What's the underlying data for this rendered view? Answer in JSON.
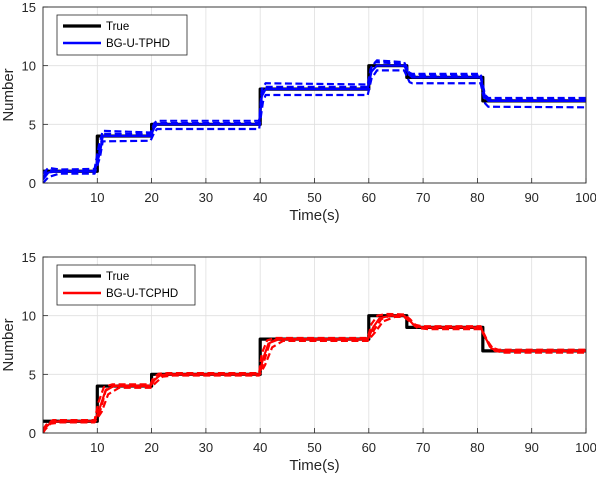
{
  "chart_data": [
    {
      "type": "line",
      "xlabel": "Time(s)",
      "ylabel": "Number",
      "xlim": [
        0,
        100
      ],
      "ylim": [
        0,
        15
      ],
      "xticks": [
        10,
        20,
        30,
        40,
        50,
        60,
        70,
        80,
        90,
        100
      ],
      "yticks": [
        0,
        5,
        10,
        15
      ],
      "grid": true,
      "legend": "top-left",
      "series": [
        {
          "name": "True",
          "color": "#000000",
          "style": "solid-step",
          "x": [
            0,
            10,
            10,
            20,
            20,
            40,
            40,
            60,
            60,
            67,
            67,
            81,
            81,
            100
          ],
          "y": [
            1,
            1,
            4,
            4,
            5,
            5,
            8,
            8,
            10,
            10,
            9,
            9,
            7,
            7
          ]
        },
        {
          "name": "BG-U-TPHD",
          "color": "#0000ff",
          "style": "solid",
          "x": [
            0,
            1,
            3,
            9.5,
            10.5,
            11,
            19.8,
            20.5,
            21,
            39.8,
            40.3,
            41,
            59.8,
            60.5,
            61.5,
            66.5,
            67.5,
            68,
            80.6,
            81.4,
            82,
            100
          ],
          "y": [
            0.3,
            0.9,
            1.0,
            1.0,
            2.6,
            4.0,
            4.0,
            4.7,
            5.0,
            5.0,
            7.4,
            8.0,
            8.0,
            9.5,
            10.0,
            10.0,
            9.2,
            9.0,
            9.0,
            7.3,
            7.0,
            7.0
          ]
        },
        {
          "name": "",
          "color": "#0000ff",
          "style": "dashed",
          "x": [
            0,
            1,
            3,
            9.5,
            10.3,
            11,
            19.8,
            20.5,
            21,
            39.8,
            40.3,
            41,
            59.8,
            60.5,
            61.5,
            66.5,
            67.5,
            68,
            80.6,
            81.4,
            82,
            100
          ],
          "y": [
            0.8,
            1.3,
            1.15,
            1.2,
            3.2,
            4.45,
            4.3,
            5.1,
            5.3,
            5.3,
            8.0,
            8.5,
            8.4,
            9.9,
            10.45,
            10.3,
            9.4,
            9.3,
            9.3,
            7.5,
            7.25,
            7.25
          ]
        },
        {
          "name": "",
          "color": "#0000ff",
          "style": "dashed",
          "x": [
            0,
            1,
            3,
            9.5,
            10.5,
            11,
            19.8,
            20.5,
            21,
            39.8,
            40.5,
            41,
            59.8,
            60.5,
            61.5,
            66.5,
            67.5,
            68,
            80.6,
            81.4,
            82,
            100
          ],
          "y": [
            0.0,
            0.5,
            0.8,
            0.8,
            2.2,
            3.55,
            3.6,
            4.3,
            4.6,
            4.6,
            6.9,
            7.5,
            7.5,
            8.9,
            9.6,
            9.6,
            8.6,
            8.5,
            8.5,
            6.8,
            6.5,
            6.45
          ]
        },
        {
          "name": "",
          "color": "#0000ff",
          "style": "dashed",
          "x": [
            0,
            1,
            3,
            9.5,
            10.5,
            11,
            19.8,
            20.5,
            21,
            39.8,
            40.3,
            41,
            59.8,
            60.3,
            61.2,
            66.5,
            67.5,
            68,
            80.6,
            81.3,
            82,
            100
          ],
          "y": [
            0.5,
            1.1,
            0.95,
            1.05,
            2.9,
            4.2,
            4.15,
            4.95,
            5.1,
            5.1,
            7.7,
            8.2,
            8.2,
            9.7,
            10.3,
            10.15,
            9.35,
            9.15,
            9.15,
            7.4,
            7.1,
            7.1
          ]
        }
      ]
    },
    {
      "type": "line",
      "xlabel": "Time(s)",
      "ylabel": "Number",
      "xlim": [
        0,
        100
      ],
      "ylim": [
        0,
        15
      ],
      "xticks": [
        10,
        20,
        30,
        40,
        50,
        60,
        70,
        80,
        90,
        100
      ],
      "yticks": [
        0,
        5,
        10,
        15
      ],
      "grid": true,
      "legend": "top-left",
      "series": [
        {
          "name": "True",
          "color": "#000000",
          "style": "solid-step",
          "x": [
            0,
            10,
            10,
            20,
            20,
            40,
            40,
            60,
            60,
            67,
            67,
            81,
            81,
            100
          ],
          "y": [
            1,
            1,
            4,
            4,
            5,
            5,
            8,
            8,
            10,
            10,
            9,
            9,
            7,
            7
          ]
        },
        {
          "name": "BG-U-TCPHD",
          "color": "#ff0000",
          "style": "solid",
          "x": [
            0,
            0.5,
            1.5,
            3,
            9.5,
            10.5,
            11.5,
            13,
            19.8,
            20.5,
            21.5,
            23,
            39.8,
            40.5,
            41.5,
            43,
            59.8,
            60.8,
            62,
            64,
            66.5,
            67.5,
            68.5,
            70,
            80.6,
            81.6,
            82.6,
            84,
            100
          ],
          "y": [
            0.1,
            0.5,
            0.9,
            1.0,
            1.0,
            2.2,
            3.6,
            4.0,
            4.0,
            4.5,
            4.9,
            5.0,
            5.0,
            6.3,
            7.6,
            8.0,
            8.0,
            9.0,
            9.8,
            10.0,
            10.0,
            9.6,
            9.1,
            9.0,
            9.0,
            8.0,
            7.2,
            7.0,
            7.0
          ]
        },
        {
          "name": "",
          "color": "#ff0000",
          "style": "dashed",
          "x": [
            0,
            0.6,
            1.8,
            3.5,
            9.5,
            10.2,
            11.2,
            12.8,
            19.8,
            20.3,
            21.3,
            22.8,
            39.8,
            40.3,
            41.3,
            42.8,
            59.8,
            60.5,
            61.6,
            63.2,
            66.5,
            67.3,
            68.3,
            69.8,
            80.6,
            81.3,
            82.3,
            83.8,
            100
          ],
          "y": [
            0.3,
            0.7,
            1.1,
            1.1,
            1.1,
            2.6,
            3.9,
            4.15,
            4.15,
            4.7,
            5.05,
            5.1,
            5.1,
            6.8,
            7.9,
            8.1,
            8.1,
            9.3,
            10.0,
            10.15,
            10.1,
            9.8,
            9.25,
            9.1,
            9.1,
            8.3,
            7.35,
            7.1,
            7.1
          ]
        },
        {
          "name": "",
          "color": "#ff0000",
          "style": "dashed",
          "x": [
            0,
            0.4,
            1.4,
            3.2,
            9.5,
            10.8,
            12,
            14,
            19.8,
            20.8,
            22,
            24,
            39.8,
            40.9,
            42.2,
            44.2,
            59.8,
            61.2,
            62.6,
            64.8,
            66.5,
            67.8,
            69,
            71,
            80.6,
            82,
            83.2,
            85,
            100
          ],
          "y": [
            0.0,
            0.3,
            0.8,
            0.9,
            0.9,
            1.8,
            3.3,
            3.85,
            3.85,
            4.3,
            4.8,
            4.9,
            4.9,
            5.8,
            7.3,
            7.85,
            7.85,
            8.6,
            9.5,
            9.9,
            9.9,
            9.4,
            8.95,
            8.85,
            8.85,
            7.7,
            7.0,
            6.85,
            6.85
          ]
        },
        {
          "name": "",
          "color": "#ff0000",
          "style": "dashed",
          "x": [
            0,
            0.5,
            1.6,
            3.3,
            9.5,
            10.6,
            11.6,
            13.3,
            19.8,
            20.6,
            21.7,
            23.5,
            39.8,
            40.7,
            41.8,
            43.5,
            59.8,
            61,
            62.3,
            64.2,
            66.5,
            67.6,
            68.7,
            70.3,
            80.6,
            81.8,
            82.9,
            84.5,
            100
          ],
          "y": [
            0.2,
            0.6,
            1.0,
            1.05,
            1.05,
            2.0,
            3.7,
            4.05,
            4.05,
            4.6,
            4.95,
            5.0,
            5.0,
            6.1,
            7.7,
            8.0,
            8.0,
            8.8,
            9.7,
            10.05,
            10.05,
            9.7,
            9.15,
            9.05,
            9.05,
            7.9,
            7.15,
            7.0,
            7.0
          ]
        }
      ]
    }
  ]
}
